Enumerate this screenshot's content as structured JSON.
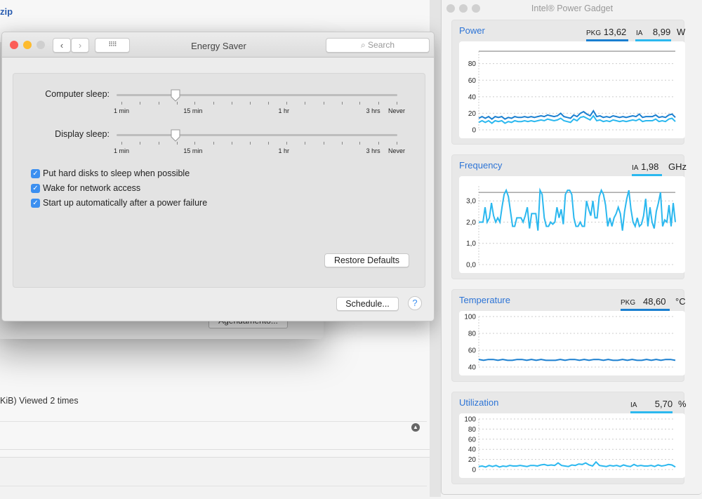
{
  "background": {
    "link_fragment": "zip",
    "behind_button": "Agendamento...",
    "viewed_text": "KiB) Viewed 2 times"
  },
  "energy_saver": {
    "title": "Energy Saver",
    "search_placeholder": "Search",
    "computer_sleep": {
      "label": "Computer sleep:",
      "value": "15 min"
    },
    "display_sleep": {
      "label": "Display sleep:",
      "value": "15 min"
    },
    "tick_labels": [
      "1 min",
      "15 min",
      "1 hr",
      "3 hrs",
      "Never"
    ],
    "checkboxes": [
      {
        "label": "Put hard disks to sleep when possible",
        "checked": true
      },
      {
        "label": "Wake for network access",
        "checked": true
      },
      {
        "label": "Start up automatically after a power failure",
        "checked": true
      }
    ],
    "restore_defaults": "Restore Defaults",
    "schedule": "Schedule...",
    "help": "?"
  },
  "power_gadget": {
    "title": "Intel® Power Gadget",
    "colors": {
      "pkg": "#1a7fd0",
      "ia": "#2bb8ef",
      "title": "#2d74d6"
    },
    "power": {
      "title": "Power",
      "pkg_label": "PKG",
      "pkg_value": "13,62",
      "ia_label": "IA",
      "ia_value": "8,99",
      "unit": "W"
    },
    "frequency": {
      "title": "Frequency",
      "ia_label": "IA",
      "ia_value": "1,98",
      "unit": "GHz"
    },
    "temperature": {
      "title": "Temperature",
      "pkg_label": "PKG",
      "pkg_value": "48,60",
      "unit": "°C"
    },
    "utilization": {
      "title": "Utilization",
      "ia_label": "IA",
      "ia_value": "5,70",
      "unit": "%"
    }
  },
  "chart_data": [
    {
      "type": "line",
      "title": "Power",
      "ylim": [
        0,
        95
      ],
      "ticks": [
        "0",
        "20",
        "40",
        "60",
        "80"
      ],
      "tick_values": [
        0,
        20,
        40,
        60,
        80
      ],
      "max_line": 95,
      "grid": true,
      "series": [
        {
          "name": "PKG",
          "values": [
            14,
            16,
            14,
            16,
            13,
            16,
            15,
            16,
            13,
            15,
            14,
            16,
            15,
            15,
            16,
            15,
            16,
            15,
            16,
            17,
            16,
            18,
            17,
            16,
            17,
            20,
            16,
            15,
            14,
            18,
            16,
            20,
            22,
            19,
            17,
            23,
            16,
            17,
            15,
            16,
            15,
            17,
            16,
            15,
            16,
            15,
            16,
            17,
            16,
            19,
            15,
            16,
            16,
            16,
            18,
            15,
            16,
            15,
            18,
            19,
            15
          ]
        },
        {
          "name": "IA",
          "values": [
            9,
            11,
            9,
            11,
            8,
            11,
            10,
            11,
            8,
            10,
            9,
            11,
            10,
            10,
            11,
            10,
            11,
            10,
            11,
            12,
            11,
            13,
            12,
            11,
            12,
            14,
            11,
            10,
            9,
            13,
            11,
            15,
            16,
            14,
            12,
            17,
            11,
            12,
            10,
            11,
            10,
            12,
            11,
            10,
            11,
            10,
            11,
            12,
            11,
            13,
            10,
            11,
            11,
            11,
            13,
            10,
            11,
            10,
            13,
            14,
            10
          ]
        }
      ]
    },
    {
      "type": "line",
      "title": "Frequency",
      "ylim": [
        0,
        3.7
      ],
      "ticks": [
        "0,0",
        "1,0",
        "2,0",
        "3,0"
      ],
      "tick_values": [
        0,
        1,
        2,
        3
      ],
      "max_line": 3.4,
      "grid": true,
      "series": [
        {
          "name": "IA",
          "values": [
            2.0,
            2.0,
            2.0,
            2.7,
            2.0,
            2.2,
            2.9,
            2.3,
            2.0,
            2.2,
            2.0,
            2.7,
            3.3,
            3.5,
            3.2,
            2.5,
            1.8,
            1.8,
            2.2,
            2.2,
            2.2,
            2.0,
            2.3,
            2.7,
            1.7,
            2.4,
            2.4,
            2.4,
            1.6,
            3.5,
            3.3,
            2.2,
            1.8,
            1.8,
            2.0,
            1.9,
            2.0,
            2.7,
            2.2,
            2.6,
            1.9,
            3.3,
            3.5,
            3.5,
            3.3,
            2.2,
            1.8,
            1.8,
            2.0,
            1.8,
            1.8,
            3.0,
            2.6,
            2.3,
            3.0,
            2.2,
            2.2,
            3.2,
            3.5,
            3.3,
            2.8,
            1.8,
            2.2,
            1.8,
            2.2,
            2.4,
            2.7,
            2.4,
            1.6,
            2.5,
            3.1,
            3.5,
            2.6,
            2.0,
            1.8,
            2.2,
            1.8,
            1.9,
            2.3,
            3.1,
            1.8,
            2.7,
            2.0,
            1.7,
            2.5,
            2.9,
            3.4,
            1.8,
            2.1,
            2.0,
            2.8,
            1.8,
            2.9,
            2.0
          ]
        }
      ]
    },
    {
      "type": "line",
      "title": "Temperature",
      "ylim": [
        40,
        100
      ],
      "ticks": [
        "40",
        "60",
        "80",
        "100"
      ],
      "tick_values": [
        40,
        60,
        80,
        100
      ],
      "grid": true,
      "series": [
        {
          "name": "PKG",
          "values": [
            49,
            48,
            49,
            49,
            48,
            49,
            48,
            48,
            49,
            49,
            48,
            49,
            48,
            49,
            48,
            48,
            48,
            49,
            48,
            49,
            49,
            48,
            49,
            48,
            49,
            49,
            48,
            49,
            48,
            48,
            49,
            48,
            49,
            48,
            48,
            49,
            48,
            49,
            48,
            49,
            49,
            48
          ]
        }
      ]
    },
    {
      "type": "line",
      "title": "Utilization",
      "ylim": [
        0,
        100
      ],
      "ticks": [
        "0",
        "20",
        "40",
        "60",
        "80",
        "100"
      ],
      "tick_values": [
        0,
        20,
        40,
        60,
        80,
        100
      ],
      "grid": true,
      "series": [
        {
          "name": "IA",
          "values": [
            6,
            7,
            5,
            8,
            6,
            8,
            5,
            7,
            6,
            8,
            7,
            7,
            8,
            7,
            6,
            8,
            8,
            7,
            9,
            10,
            8,
            9,
            8,
            13,
            8,
            7,
            6,
            9,
            8,
            11,
            10,
            13,
            9,
            7,
            15,
            8,
            7,
            6,
            8,
            7,
            8,
            6,
            9,
            7,
            6,
            10,
            7,
            8,
            7,
            7,
            8,
            6,
            9,
            7,
            8,
            10,
            9,
            5
          ]
        }
      ]
    }
  ]
}
